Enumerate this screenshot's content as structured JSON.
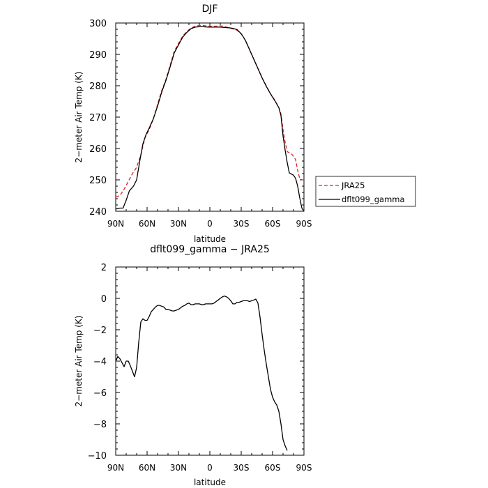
{
  "chart_data": [
    {
      "type": "line",
      "title": "DJF",
      "xlabel": "latitude",
      "ylabel": "2−meter Air Temp (K)",
      "xlim": [
        90,
        -90
      ],
      "ylim": [
        240,
        300
      ],
      "x_ticks": [
        {
          "value": 90,
          "label": "90N"
        },
        {
          "value": 60,
          "label": "60N"
        },
        {
          "value": 30,
          "label": "30N"
        },
        {
          "value": 0,
          "label": "0"
        },
        {
          "value": -30,
          "label": "30S"
        },
        {
          "value": -60,
          "label": "60S"
        },
        {
          "value": -90,
          "label": "90S"
        }
      ],
      "y_ticks": [
        240,
        250,
        260,
        270,
        280,
        290,
        300
      ],
      "legend": "outside-right",
      "grid": false,
      "series": [
        {
          "name": "JRA25",
          "color": "#e02020",
          "dash": "dashed",
          "points": [
            [
              90,
              244.5
            ],
            [
              86,
              245
            ],
            [
              82,
              247
            ],
            [
              78,
              249.5
            ],
            [
              74,
              252
            ],
            [
              70,
              254
            ],
            [
              66,
              258
            ],
            [
              62,
              263.5
            ],
            [
              58,
              266
            ],
            [
              54,
              269.5
            ],
            [
              50,
              274
            ],
            [
              46,
              278.5
            ],
            [
              42,
              282
            ],
            [
              38,
              286.5
            ],
            [
              34,
              291
            ],
            [
              30,
              293.5
            ],
            [
              26,
              295.8
            ],
            [
              22,
              297.3
            ],
            [
              18,
              298.4
            ],
            [
              14,
              299
            ],
            [
              10,
              299.2
            ],
            [
              6,
              299.2
            ],
            [
              2,
              299
            ],
            [
              -2,
              299
            ],
            [
              -6,
              299
            ],
            [
              -10,
              299.1
            ],
            [
              -14,
              298.9
            ],
            [
              -18,
              298.5
            ],
            [
              -22,
              298.1
            ],
            [
              -26,
              297.7
            ],
            [
              -30,
              296.5
            ],
            [
              -34,
              294.5
            ],
            [
              -38,
              291.5
            ],
            [
              -42,
              288.5
            ],
            [
              -46,
              285.5
            ],
            [
              -50,
              282.5
            ],
            [
              -54,
              280
            ],
            [
              -58,
              277.5
            ],
            [
              -62,
              275.5
            ],
            [
              -66,
              273
            ],
            [
              -68,
              271
            ],
            [
              -70,
              266
            ],
            [
              -72,
              262
            ],
            [
              -74,
              259
            ],
            [
              -78,
              258.3
            ],
            [
              -80,
              257.5
            ],
            [
              -82,
              256.5
            ],
            [
              -84,
              253
            ],
            [
              -86,
              250.3
            ],
            [
              -88,
              250
            ],
            [
              -90,
              250
            ]
          ]
        },
        {
          "name": "dflt099_gamma",
          "color": "#000000",
          "dash": "solid",
          "points": [
            [
              90,
              240.7
            ],
            [
              86,
              241
            ],
            [
              83,
              241
            ],
            [
              80,
              243.5
            ],
            [
              77,
              246.5
            ],
            [
              73,
              248
            ],
            [
              70,
              250
            ],
            [
              67,
              256
            ],
            [
              64,
              261.5
            ],
            [
              61,
              264.5
            ],
            [
              58,
              266.5
            ],
            [
              54,
              269.5
            ],
            [
              50,
              273.5
            ],
            [
              46,
              278
            ],
            [
              42,
              281.7
            ],
            [
              38,
              286
            ],
            [
              34,
              290.5
            ],
            [
              30,
              293
            ],
            [
              26,
              295.5
            ],
            [
              22,
              297
            ],
            [
              18,
              298.2
            ],
            [
              14,
              298.7
            ],
            [
              10,
              298.8
            ],
            [
              6,
              298.8
            ],
            [
              2,
              298.7
            ],
            [
              -2,
              298.7
            ],
            [
              -6,
              298.7
            ],
            [
              -10,
              298.7
            ],
            [
              -14,
              298.6
            ],
            [
              -18,
              298.5
            ],
            [
              -22,
              298.3
            ],
            [
              -26,
              297.9
            ],
            [
              -30,
              296.6
            ],
            [
              -34,
              294.5
            ],
            [
              -38,
              291.5
            ],
            [
              -42,
              288.5
            ],
            [
              -46,
              285.5
            ],
            [
              -50,
              282.5
            ],
            [
              -54,
              279.8
            ],
            [
              -58,
              277.4
            ],
            [
              -62,
              275.3
            ],
            [
              -66,
              273
            ],
            [
              -68,
              270.5
            ],
            [
              -70,
              264
            ],
            [
              -72,
              259.5
            ],
            [
              -74,
              255.5
            ],
            [
              -76,
              252.2
            ],
            [
              -80,
              251.5
            ],
            [
              -82,
              250.5
            ],
            [
              -84,
              248
            ],
            [
              -86,
              244.2
            ],
            [
              -88,
              241
            ],
            [
              -90,
              240
            ]
          ]
        }
      ]
    },
    {
      "type": "line",
      "title": "dflt099_gamma − JRA25",
      "xlabel": "latitude",
      "ylabel": "2−meter Air Temp (K)",
      "xlim": [
        90,
        -90
      ],
      "ylim": [
        -10,
        2
      ],
      "x_ticks": [
        {
          "value": 90,
          "label": "90N"
        },
        {
          "value": 60,
          "label": "60N"
        },
        {
          "value": 30,
          "label": "30N"
        },
        {
          "value": 0,
          "label": "0"
        },
        {
          "value": -30,
          "label": "30S"
        },
        {
          "value": -60,
          "label": "60S"
        },
        {
          "value": -90,
          "label": "90S"
        }
      ],
      "y_ticks": [
        2,
        0,
        -2,
        -4,
        -6,
        -8,
        -10
      ],
      "grid": false,
      "series": [
        {
          "color": "#000000",
          "dash": "solid",
          "points": [
            [
              90,
              -4
            ],
            [
              88,
              -3.7
            ],
            [
              86,
              -3.85
            ],
            [
              84,
              -4.1
            ],
            [
              82,
              -4.35
            ],
            [
              80,
              -4
            ],
            [
              78,
              -4
            ],
            [
              76,
              -4.3
            ],
            [
              74,
              -4.65
            ],
            [
              72,
              -5
            ],
            [
              70,
              -4.4
            ],
            [
              68,
              -2.8
            ],
            [
              66,
              -1.5
            ],
            [
              64,
              -1.3
            ],
            [
              62,
              -1.4
            ],
            [
              60,
              -1.4
            ],
            [
              58,
              -1.15
            ],
            [
              56,
              -0.85
            ],
            [
              54,
              -0.7
            ],
            [
              52,
              -0.55
            ],
            [
              50,
              -0.45
            ],
            [
              48,
              -0.45
            ],
            [
              46,
              -0.5
            ],
            [
              44,
              -0.55
            ],
            [
              42,
              -0.7
            ],
            [
              40,
              -0.7
            ],
            [
              38,
              -0.75
            ],
            [
              36,
              -0.8
            ],
            [
              34,
              -0.8
            ],
            [
              32,
              -0.75
            ],
            [
              30,
              -0.7
            ],
            [
              28,
              -0.6
            ],
            [
              26,
              -0.5
            ],
            [
              24,
              -0.45
            ],
            [
              22,
              -0.35
            ],
            [
              20,
              -0.3
            ],
            [
              18,
              -0.4
            ],
            [
              16,
              -0.4
            ],
            [
              14,
              -0.35
            ],
            [
              12,
              -0.35
            ],
            [
              10,
              -0.35
            ],
            [
              8,
              -0.4
            ],
            [
              6,
              -0.4
            ],
            [
              4,
              -0.35
            ],
            [
              2,
              -0.35
            ],
            [
              0,
              -0.35
            ],
            [
              -2,
              -0.35
            ],
            [
              -4,
              -0.3
            ],
            [
              -6,
              -0.2
            ],
            [
              -8,
              -0.1
            ],
            [
              -10,
              0
            ],
            [
              -12,
              0.1
            ],
            [
              -14,
              0.15
            ],
            [
              -16,
              0.1
            ],
            [
              -18,
              0
            ],
            [
              -20,
              -0.15
            ],
            [
              -22,
              -0.35
            ],
            [
              -24,
              -0.35
            ],
            [
              -26,
              -0.25
            ],
            [
              -28,
              -0.25
            ],
            [
              -30,
              -0.2
            ],
            [
              -32,
              -0.15
            ],
            [
              -34,
              -0.15
            ],
            [
              -36,
              -0.15
            ],
            [
              -38,
              -0.2
            ],
            [
              -40,
              -0.15
            ],
            [
              -42,
              -0.1
            ],
            [
              -44,
              -0.05
            ],
            [
              -46,
              -0.3
            ],
            [
              -48,
              -1.2
            ],
            [
              -50,
              -2.3
            ],
            [
              -52,
              -3.3
            ],
            [
              -54,
              -4.2
            ],
            [
              -56,
              -5
            ],
            [
              -58,
              -5.8
            ],
            [
              -60,
              -6.3
            ],
            [
              -62,
              -6.6
            ],
            [
              -64,
              -6.8
            ],
            [
              -66,
              -7.2
            ],
            [
              -68,
              -8
            ],
            [
              -70,
              -9
            ],
            [
              -72,
              -9.4
            ],
            [
              -74,
              -9.7
            ]
          ]
        }
      ]
    }
  ]
}
